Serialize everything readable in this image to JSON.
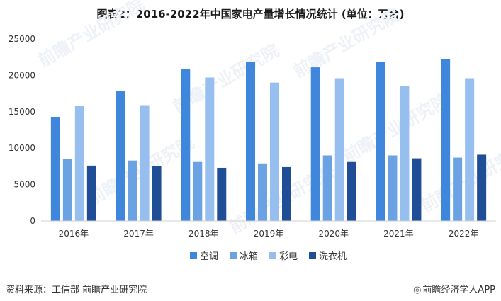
{
  "page": {
    "title": "图表2：2016-2022年中国家电产量增长情况统计 (单位：万台)",
    "source": "资料来源：工信部 前瞻产业研究院",
    "brand": "前瞻经济学人APP",
    "watermark": "前瞻产业研究院"
  },
  "colors": {
    "series": [
      "#3f87dc",
      "#6aa2e3",
      "#96bff0",
      "#1f4e96"
    ],
    "axis": "#d0d0d0",
    "tick_text": "#333333"
  },
  "chart_data": {
    "type": "bar",
    "categories": [
      "2016年",
      "2017年",
      "2018年",
      "2019年",
      "2020年",
      "2021年",
      "2022年"
    ],
    "series": [
      {
        "name": "空调",
        "values": [
          14300,
          17800,
          20900,
          21800,
          21100,
          21800,
          22200
        ]
      },
      {
        "name": "冰箱",
        "values": [
          8500,
          8300,
          8100,
          7900,
          9000,
          9000,
          8700
        ]
      },
      {
        "name": "彩电",
        "values": [
          15800,
          15900,
          19700,
          19000,
          19600,
          18500,
          19600
        ]
      },
      {
        "name": "洗衣机",
        "values": [
          7600,
          7500,
          7300,
          7400,
          8100,
          8600,
          9100
        ]
      }
    ],
    "yticks": [
      0,
      5000,
      10000,
      15000,
      20000,
      25000
    ],
    "ylim": [
      0,
      25000
    ],
    "legend_position": "bottom",
    "grid": false
  }
}
